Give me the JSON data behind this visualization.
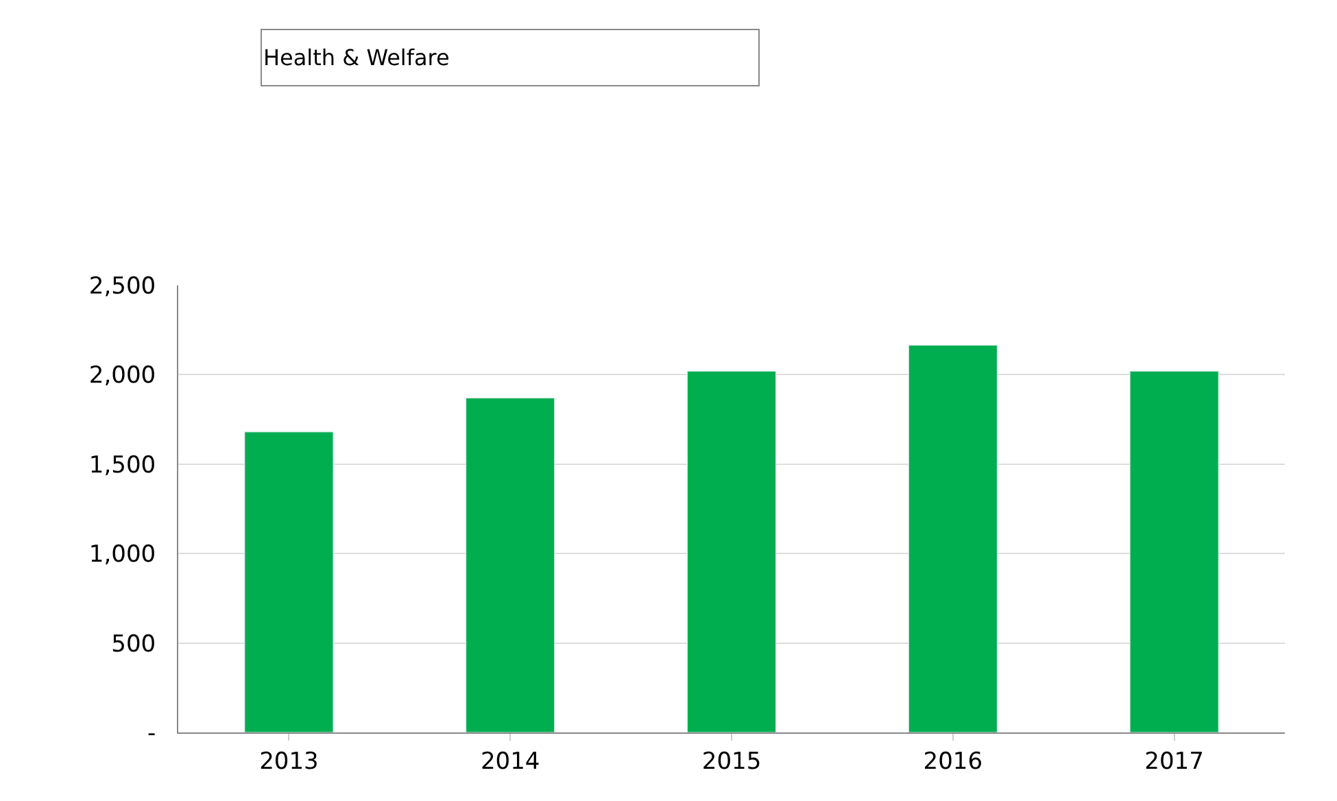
{
  "chart_data": {
    "type": "bar",
    "title": "Health & Welfare",
    "categories": [
      "2013",
      "2014",
      "2015",
      "2016",
      "2017"
    ],
    "series": [
      {
        "color": "#00ae4f",
        "values": [
          1680,
          1870,
          2020,
          2165,
          2020
        ]
      }
    ],
    "ylim": [
      0,
      2500
    ],
    "yticks": [
      {
        "value": 0,
        "label": "-"
      },
      {
        "value": 500,
        "label": "500"
      },
      {
        "value": 1000,
        "label": "1,000"
      },
      {
        "value": 1500,
        "label": "1,500"
      },
      {
        "value": 2000,
        "label": "2,000"
      },
      {
        "value": 2500,
        "label": "2,500"
      }
    ],
    "grid": "y"
  }
}
